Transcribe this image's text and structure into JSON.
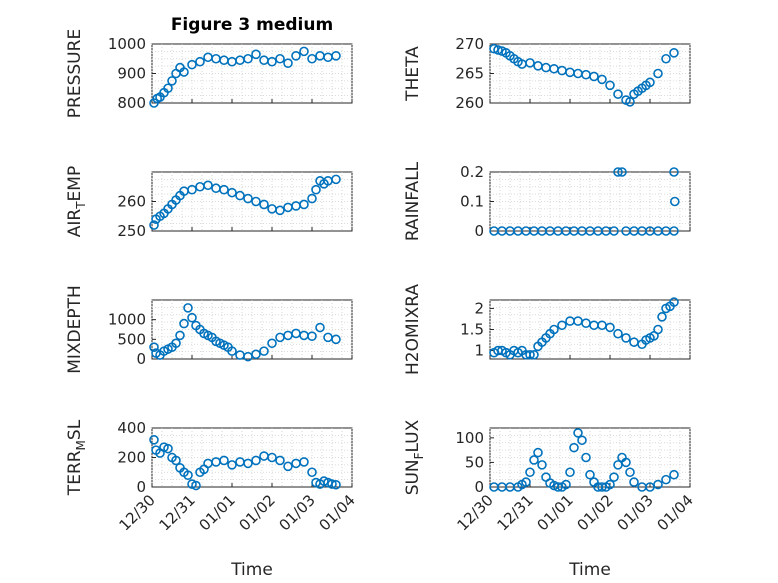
{
  "figure_title": "Figure 3 medium",
  "colors": {
    "marker": "#0072BD",
    "axis": "#262626",
    "grid": "#d0d0d0"
  },
  "chart_data": [
    {
      "type": "scatter",
      "id": "pressure",
      "ylabel": "PRESSURE",
      "ylim": [
        800,
        1000
      ],
      "yticks": [
        800,
        900,
        1000
      ],
      "ytick_labels": [
        "800",
        "900",
        "1000"
      ],
      "xlim": [
        0,
        5
      ],
      "xtick_labels": [
        "12/30",
        "12/31",
        "01/01",
        "01/02",
        "01/03",
        "01/04"
      ],
      "show_xticklabels": false,
      "x": [
        0.05,
        0.13,
        0.2,
        0.3,
        0.4,
        0.5,
        0.6,
        0.7,
        0.8,
        1.0,
        1.2,
        1.4,
        1.6,
        1.8,
        2.0,
        2.2,
        2.4,
        2.6,
        2.8,
        3.0,
        3.2,
        3.4,
        3.6,
        3.8,
        4.0,
        4.2,
        4.4,
        4.6
      ],
      "y": [
        800,
        815,
        820,
        835,
        850,
        875,
        900,
        920,
        905,
        930,
        940,
        955,
        950,
        945,
        940,
        945,
        950,
        965,
        945,
        940,
        950,
        935,
        960,
        975,
        950,
        960,
        955,
        960
      ]
    },
    {
      "type": "scatter",
      "id": "theta",
      "ylabel": "THETA",
      "ylim": [
        260,
        270
      ],
      "yticks": [
        260,
        265,
        270
      ],
      "ytick_labels": [
        "260",
        "265",
        "270"
      ],
      "xlim": [
        0,
        5
      ],
      "xtick_labels": [
        "12/30",
        "12/31",
        "01/01",
        "01/02",
        "01/03",
        "01/04"
      ],
      "show_xticklabels": false,
      "x": [
        0.1,
        0.2,
        0.3,
        0.4,
        0.5,
        0.6,
        0.7,
        0.8,
        1.0,
        1.2,
        1.4,
        1.6,
        1.8,
        2.0,
        2.2,
        2.4,
        2.6,
        2.8,
        3.0,
        3.2,
        3.4,
        3.5,
        3.6,
        3.7,
        3.8,
        3.9,
        4.0,
        4.2,
        4.4,
        4.6
      ],
      "y": [
        269.2,
        269,
        268.8,
        268.5,
        268,
        267.5,
        267,
        266.6,
        266.8,
        266.3,
        266,
        265.8,
        265.5,
        265.2,
        265,
        264.8,
        264.5,
        264,
        263,
        261.5,
        260.5,
        260.2,
        261.5,
        262,
        262.5,
        263,
        263.5,
        265,
        267.5,
        268.5
      ]
    },
    {
      "type": "scatter",
      "id": "air_temp",
      "ylabel": "AIR_TEMP",
      "ylabel_main": "AIR",
      "ylabel_sub": "T",
      "ylabel_tail": "EMP",
      "ylim": [
        250,
        270
      ],
      "yticks": [
        250,
        260
      ],
      "ytick_labels": [
        "250",
        "260"
      ],
      "xlim": [
        0,
        5
      ],
      "xtick_labels": [
        "12/30",
        "12/31",
        "01/01",
        "01/02",
        "01/03",
        "01/04"
      ],
      "show_xticklabels": false,
      "x": [
        0.05,
        0.1,
        0.2,
        0.3,
        0.4,
        0.5,
        0.6,
        0.7,
        0.8,
        1.0,
        1.2,
        1.4,
        1.6,
        1.8,
        2.0,
        2.2,
        2.4,
        2.6,
        2.8,
        3.0,
        3.2,
        3.4,
        3.6,
        3.8,
        4.0,
        4.1,
        4.2,
        4.3,
        4.4,
        4.6
      ],
      "y": [
        252,
        254,
        255,
        256,
        257.5,
        259,
        260.5,
        262,
        263.5,
        264,
        265,
        265.5,
        264.5,
        264,
        263,
        262,
        261,
        260,
        259,
        257.5,
        257,
        258,
        258.5,
        259,
        261,
        264,
        267,
        266,
        267,
        267.5
      ]
    },
    {
      "type": "scatter",
      "id": "rainfall",
      "ylabel": "RAINFALL",
      "ylim": [
        0,
        0.2
      ],
      "yticks": [
        0,
        0.1,
        0.2
      ],
      "ytick_labels": [
        "0",
        "0.1",
        "0.2"
      ],
      "xlim": [
        0,
        5
      ],
      "xtick_labels": [
        "12/30",
        "12/31",
        "01/01",
        "01/02",
        "01/03",
        "01/04"
      ],
      "show_xticklabels": false,
      "x": [
        0.1,
        0.3,
        0.5,
        0.7,
        0.9,
        1.1,
        1.3,
        1.5,
        1.7,
        1.9,
        2.1,
        2.3,
        2.5,
        2.7,
        2.9,
        3.1,
        3.2,
        3.3,
        3.4,
        3.6,
        3.8,
        4.0,
        4.2,
        4.4,
        4.6,
        4.6,
        4.62
      ],
      "y": [
        0,
        0,
        0,
        0,
        0,
        0,
        0,
        0,
        0,
        0,
        0,
        0,
        0,
        0,
        0,
        0,
        0.2,
        0.2,
        0,
        0,
        0,
        0,
        0,
        0,
        0,
        0.2,
        0.1
      ]
    },
    {
      "type": "scatter",
      "id": "mixdepth",
      "ylabel": "MIXDEPTH",
      "ylim": [
        0,
        1500
      ],
      "yticks": [
        0,
        500,
        1000
      ],
      "ytick_labels": [
        "0",
        "500",
        "1000"
      ],
      "xlim": [
        0,
        5
      ],
      "xtick_labels": [
        "12/30",
        "12/31",
        "01/01",
        "01/02",
        "01/03",
        "01/04"
      ],
      "show_xticklabels": false,
      "x": [
        0.05,
        0.1,
        0.2,
        0.3,
        0.4,
        0.5,
        0.6,
        0.7,
        0.8,
        0.9,
        1.0,
        1.1,
        1.2,
        1.3,
        1.4,
        1.5,
        1.6,
        1.7,
        1.8,
        1.9,
        2.0,
        2.2,
        2.4,
        2.6,
        2.8,
        3.0,
        3.2,
        3.4,
        3.6,
        3.8,
        4.0,
        4.2,
        4.4,
        4.6
      ],
      "y": [
        300,
        150,
        100,
        200,
        250,
        300,
        400,
        600,
        900,
        1300,
        1050,
        850,
        750,
        650,
        600,
        550,
        450,
        400,
        350,
        300,
        200,
        100,
        60,
        120,
        200,
        400,
        550,
        600,
        650,
        600,
        580,
        800,
        550,
        500
      ]
    },
    {
      "type": "scatter",
      "id": "h2omixra",
      "ylabel": "H2OMIXRA",
      "ylim": [
        0.8,
        2.2
      ],
      "yticks": [
        1,
        1.5,
        2
      ],
      "ytick_labels": [
        "1",
        "1.5",
        "2"
      ],
      "xlim": [
        0,
        5
      ],
      "xtick_labels": [
        "12/30",
        "12/31",
        "01/01",
        "01/02",
        "01/03",
        "01/04"
      ],
      "show_xticklabels": false,
      "x": [
        0.1,
        0.2,
        0.3,
        0.4,
        0.5,
        0.6,
        0.7,
        0.8,
        0.9,
        1.0,
        1.1,
        1.2,
        1.3,
        1.4,
        1.5,
        1.6,
        1.8,
        2.0,
        2.2,
        2.4,
        2.6,
        2.8,
        3.0,
        3.2,
        3.4,
        3.6,
        3.8,
        3.9,
        4.0,
        4.1,
        4.2,
        4.3,
        4.4,
        4.5,
        4.6
      ],
      "y": [
        0.95,
        1.0,
        1.0,
        0.95,
        0.9,
        1.0,
        0.95,
        1.0,
        0.9,
        0.9,
        0.9,
        1.1,
        1.2,
        1.3,
        1.4,
        1.5,
        1.6,
        1.7,
        1.7,
        1.65,
        1.6,
        1.6,
        1.55,
        1.4,
        1.3,
        1.2,
        1.15,
        1.25,
        1.3,
        1.35,
        1.5,
        1.8,
        2.0,
        2.05,
        2.15
      ]
    },
    {
      "type": "scatter",
      "id": "terr_msl",
      "ylabel": "TERR_MSL",
      "ylabel_main": "TERR",
      "ylabel_sub": "M",
      "ylabel_tail": "SL",
      "ylim": [
        0,
        400
      ],
      "yticks": [
        0,
        200,
        400
      ],
      "ytick_labels": [
        "0",
        "200",
        "400"
      ],
      "xlim": [
        0,
        5
      ],
      "xtick_labels": [
        "12/30",
        "12/31",
        "01/01",
        "01/02",
        "01/03",
        "01/04"
      ],
      "show_xticklabels": true,
      "xlabel": "Time",
      "x": [
        0.05,
        0.1,
        0.2,
        0.3,
        0.4,
        0.5,
        0.6,
        0.7,
        0.8,
        0.9,
        1.0,
        1.1,
        1.2,
        1.3,
        1.4,
        1.6,
        1.8,
        2.0,
        2.2,
        2.4,
        2.6,
        2.8,
        3.0,
        3.2,
        3.4,
        3.6,
        3.8,
        4.0,
        4.1,
        4.2,
        4.3,
        4.4,
        4.5,
        4.6
      ],
      "y": [
        320,
        250,
        230,
        270,
        260,
        200,
        180,
        130,
        100,
        80,
        20,
        10,
        100,
        120,
        160,
        170,
        180,
        150,
        170,
        160,
        180,
        210,
        200,
        180,
        140,
        160,
        170,
        100,
        30,
        20,
        40,
        30,
        20,
        15
      ]
    },
    {
      "type": "scatter",
      "id": "sun_flux",
      "ylabel": "SUN_FLUX",
      "ylabel_main": "SUN",
      "ylabel_sub": "F",
      "ylabel_tail": "LUX",
      "ylim": [
        0,
        120
      ],
      "yticks": [
        0,
        50,
        100
      ],
      "ytick_labels": [
        "0",
        "50",
        "100"
      ],
      "xlim": [
        0,
        5
      ],
      "xtick_labels": [
        "12/30",
        "12/31",
        "01/01",
        "01/02",
        "01/03",
        "01/04"
      ],
      "show_xticklabels": true,
      "xlabel": "Time",
      "x": [
        0.1,
        0.3,
        0.5,
        0.7,
        0.8,
        0.9,
        1.0,
        1.1,
        1.2,
        1.3,
        1.4,
        1.5,
        1.6,
        1.7,
        1.8,
        1.9,
        2.0,
        2.1,
        2.2,
        2.3,
        2.4,
        2.5,
        2.6,
        2.7,
        2.8,
        2.9,
        3.0,
        3.1,
        3.2,
        3.3,
        3.4,
        3.5,
        3.6,
        3.8,
        4.0,
        4.2,
        4.4,
        4.6
      ],
      "y": [
        0,
        0,
        0,
        0,
        5,
        10,
        30,
        55,
        70,
        45,
        20,
        8,
        3,
        0,
        0,
        5,
        30,
        80,
        110,
        95,
        60,
        25,
        10,
        0,
        0,
        0,
        5,
        20,
        45,
        60,
        50,
        30,
        10,
        0,
        0,
        5,
        15,
        25
      ]
    }
  ]
}
